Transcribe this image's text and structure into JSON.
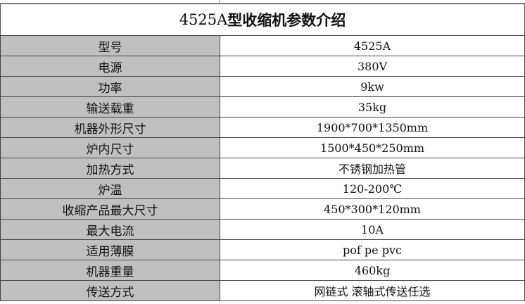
{
  "title": {
    "model": "4525A",
    "text": "型收缩机参数介绍"
  },
  "rows": [
    {
      "label": "型号",
      "value": "4525A"
    },
    {
      "label": "电源",
      "value": "380V"
    },
    {
      "label": "功率",
      "value": "9kw"
    },
    {
      "label": "输送载重",
      "value": "35kg"
    },
    {
      "label": "机器外形尺寸",
      "value": "1900*700*1350mm"
    },
    {
      "label": "炉内尺寸",
      "value": "1500*450*250mm"
    },
    {
      "label": "加热方式",
      "value": "不锈钢加热管"
    },
    {
      "label": "炉温",
      "value": "120-200℃"
    },
    {
      "label": "收缩产品最大尺寸",
      "value": "450*300*120mm"
    },
    {
      "label": "最大电流",
      "value": "10A"
    },
    {
      "label": "适用薄膜",
      "value": "pof pe pvc"
    },
    {
      "label": "机器重量",
      "value": "460kg"
    },
    {
      "label": "传送方式",
      "value": "网链式 滚轴式传送任选"
    }
  ]
}
